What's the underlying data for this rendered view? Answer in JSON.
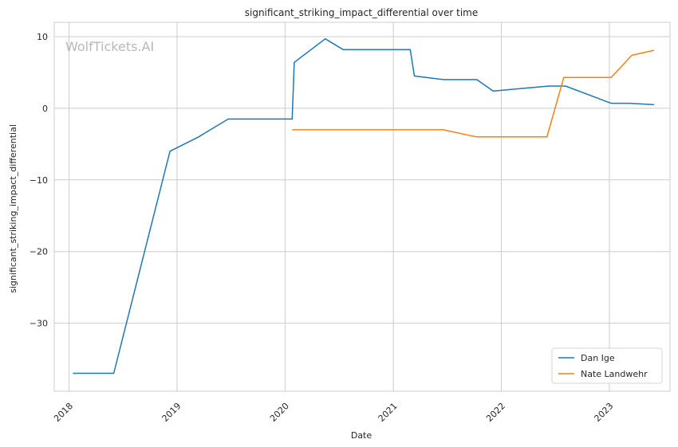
{
  "chart_data": {
    "type": "line",
    "title": "significant_striking_impact_differential over time",
    "xlabel": "Date",
    "ylabel": "significant_striking_impact_differential",
    "watermark": "WolfTickets.AI",
    "x_ticks": [
      "2018",
      "2019",
      "2020",
      "2021",
      "2022",
      "2023"
    ],
    "y_ticks": [
      10,
      0,
      -10,
      -20,
      -30
    ],
    "y_tick_labels": [
      "10",
      "0",
      "−10",
      "−20",
      "−30"
    ],
    "xlim": [
      "2017-11-12",
      "2023-07-25"
    ],
    "ylim": [
      -39.5,
      12
    ],
    "grid": true,
    "legend_position": "lower-right",
    "series": [
      {
        "name": "Dan Ige",
        "color": "#1f77b4",
        "points": [
          [
            "2018-01-14",
            -37
          ],
          [
            "2018-06-01",
            -37
          ],
          [
            "2018-12-08",
            -6
          ],
          [
            "2019-03-15",
            -4
          ],
          [
            "2019-06-23",
            -1.5
          ],
          [
            "2020-01-25",
            -1.5
          ],
          [
            "2020-02-01",
            6.4
          ],
          [
            "2020-05-16",
            9.7
          ],
          [
            "2020-07-15",
            8.2
          ],
          [
            "2021-02-27",
            8.2
          ],
          [
            "2021-03-13",
            4.5
          ],
          [
            "2021-06-19",
            4.0
          ],
          [
            "2021-10-10",
            4.0
          ],
          [
            "2021-12-04",
            2.4
          ],
          [
            "2022-06-11",
            3.1
          ],
          [
            "2022-08-06",
            3.1
          ],
          [
            "2023-01-07",
            0.7
          ],
          [
            "2023-03-11",
            0.7
          ],
          [
            "2023-06-01",
            0.5
          ]
        ]
      },
      {
        "name": "Nate Landwehr",
        "color": "#ff7f0e",
        "points": [
          [
            "2020-01-25",
            -3
          ],
          [
            "2021-06-19",
            -3
          ],
          [
            "2021-10-09",
            -4
          ],
          [
            "2022-06-04",
            -4
          ],
          [
            "2022-07-31",
            4.3
          ],
          [
            "2023-01-07",
            4.3
          ],
          [
            "2023-03-18",
            7.4
          ],
          [
            "2023-06-01",
            8.1
          ]
        ]
      }
    ]
  }
}
